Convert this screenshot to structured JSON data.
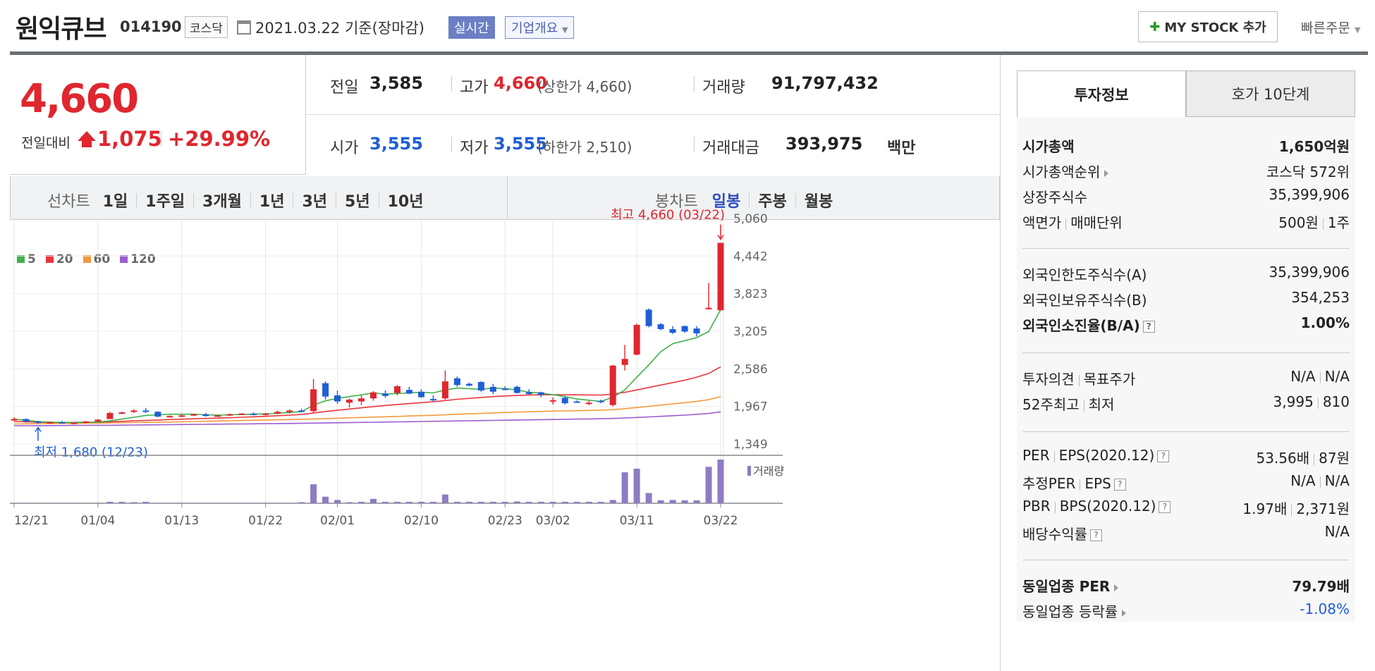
{
  "header": {
    "stock_name": "원익큐브",
    "code": "014190",
    "market": "코스닥",
    "date": "2021.03.22",
    "date_basis": "기준(장마감)",
    "realtime": "실시간",
    "company_info": "기업개요",
    "mystock_label": "MY STOCK 추가",
    "quick_order": "빠른주문"
  },
  "price": {
    "current": "4,660",
    "change_label": "전일대비",
    "change": "1,075",
    "change_pct": "+29.99%"
  },
  "stats": {
    "prev_label": "전일",
    "prev": "3,585",
    "high_label": "고가",
    "high": "4,660",
    "upper_label": "(상한가 4,660)",
    "volume_label": "거래량",
    "volume": "91,797,432",
    "open_label": "시가",
    "open": "3,555",
    "low_label": "저가",
    "low": "3,555",
    "lower_label": "(하한가 2,510)",
    "amount_label": "거래대금",
    "amount": "393,975",
    "amount_unit": "백만"
  },
  "period": {
    "line_label": "선차트",
    "line_items": [
      "1일",
      "1주일",
      "3개월",
      "1년",
      "3년",
      "5년",
      "10년"
    ],
    "candle_label": "봉차트",
    "candle_items": [
      "일봉",
      "주봉",
      "월봉"
    ],
    "candle_selected": 0
  },
  "legend": [
    {
      "label": "5",
      "color": "#3fb24a"
    },
    {
      "label": "20",
      "color": "#e8363c"
    },
    {
      "label": "60",
      "color": "#f19a3e"
    },
    {
      "label": "120",
      "color": "#9b5ed0"
    }
  ],
  "chart_data": {
    "type": "candlestick",
    "y_ticks": [
      5060,
      4442,
      3823,
      3205,
      2586,
      1967,
      1349
    ],
    "y_tick_labels": [
      "5,060",
      "4,442",
      "3,823",
      "3,205",
      "2,586",
      "1,967",
      "1,349"
    ],
    "ylim": [
      1349,
      5060
    ],
    "x_labels": [
      "12/21",
      "01/04",
      "01/13",
      "01/22",
      "02/01",
      "02/10",
      "02/23",
      "03/02",
      "03/11",
      "03/22"
    ],
    "x_label_index": [
      0,
      7,
      14,
      21,
      27,
      34,
      41,
      45,
      52,
      59
    ],
    "high_annotation": "최고 4,660 (03/22)",
    "low_annotation": "최저 1,680 (12/23)",
    "volume_label": "거래량",
    "candles": [
      [
        1750,
        1790,
        1730,
        1760
      ],
      [
        1760,
        1770,
        1700,
        1720
      ],
      [
        1720,
        1730,
        1680,
        1700
      ],
      [
        1700,
        1720,
        1690,
        1710
      ],
      [
        1710,
        1730,
        1700,
        1690
      ],
      [
        1690,
        1710,
        1680,
        1700
      ],
      [
        1700,
        1730,
        1690,
        1720
      ],
      [
        1720,
        1760,
        1710,
        1750
      ],
      [
        1760,
        1880,
        1760,
        1860
      ],
      [
        1860,
        1880,
        1840,
        1870
      ],
      [
        1880,
        1920,
        1860,
        1900
      ],
      [
        1900,
        1940,
        1860,
        1880
      ],
      [
        1880,
        1890,
        1790,
        1800
      ],
      [
        1800,
        1820,
        1790,
        1810
      ],
      [
        1810,
        1840,
        1790,
        1820
      ],
      [
        1820,
        1850,
        1810,
        1840
      ],
      [
        1840,
        1860,
        1800,
        1810
      ],
      [
        1810,
        1830,
        1800,
        1820
      ],
      [
        1820,
        1850,
        1810,
        1840
      ],
      [
        1840,
        1860,
        1830,
        1850
      ],
      [
        1850,
        1870,
        1820,
        1830
      ],
      [
        1830,
        1860,
        1820,
        1850
      ],
      [
        1850,
        1900,
        1840,
        1880
      ],
      [
        1880,
        1920,
        1850,
        1900
      ],
      [
        1900,
        1930,
        1880,
        1890
      ],
      [
        1890,
        2420,
        1870,
        2250
      ],
      [
        2350,
        2380,
        2080,
        2130
      ],
      [
        2150,
        2230,
        2010,
        2050
      ],
      [
        2030,
        2100,
        1950,
        2080
      ],
      [
        2050,
        2150,
        1990,
        2100
      ],
      [
        2100,
        2220,
        2060,
        2200
      ],
      [
        2180,
        2230,
        2110,
        2140
      ],
      [
        2190,
        2320,
        2150,
        2300
      ],
      [
        2240,
        2290,
        2170,
        2180
      ],
      [
        2210,
        2250,
        2110,
        2120
      ],
      [
        2090,
        2150,
        2050,
        2080
      ],
      [
        2100,
        2560,
        2080,
        2380
      ],
      [
        2430,
        2460,
        2290,
        2320
      ],
      [
        2340,
        2360,
        2300,
        2310
      ],
      [
        2370,
        2380,
        2210,
        2230
      ],
      [
        2290,
        2340,
        2170,
        2210
      ],
      [
        2260,
        2300,
        2240,
        2250
      ],
      [
        2290,
        2310,
        2180,
        2190
      ],
      [
        2200,
        2250,
        2160,
        2170
      ],
      [
        2200,
        2210,
        2120,
        2160
      ],
      [
        2060,
        2120,
        2000,
        2070
      ],
      [
        2110,
        2140,
        2000,
        2020
      ],
      [
        2050,
        2070,
        2030,
        2040
      ],
      [
        2010,
        2060,
        1990,
        2030
      ],
      [
        2060,
        2080,
        2020,
        2050
      ],
      [
        1990,
        2650,
        1970,
        2640
      ],
      [
        2650,
        2980,
        2560,
        2750
      ],
      [
        2820,
        3330,
        2810,
        3310
      ],
      [
        3560,
        3580,
        3270,
        3290
      ],
      [
        3320,
        3340,
        3220,
        3240
      ],
      [
        3240,
        3290,
        3160,
        3180
      ],
      [
        3290,
        3300,
        3180,
        3200
      ],
      [
        3250,
        3290,
        3120,
        3170
      ],
      [
        3590,
        4000,
        3560,
        3590
      ],
      [
        3550,
        4660,
        3550,
        4660
      ]
    ],
    "ma5": [
      1760,
      1740,
      1720,
      1710,
      1705,
      1700,
      1705,
      1710,
      1730,
      1760,
      1790,
      1820,
      1830,
      1840,
      1840,
      1840,
      1830,
      1825,
      1830,
      1835,
      1840,
      1845,
      1855,
      1870,
      1880,
      1990,
      2060,
      2100,
      2130,
      2160,
      2190,
      2170,
      2180,
      2190,
      2200,
      2190,
      2240,
      2270,
      2260,
      2250,
      2270,
      2260,
      2240,
      2200,
      2190,
      2160,
      2130,
      2090,
      2070,
      2050,
      2120,
      2240,
      2450,
      2650,
      2870,
      3000,
      3050,
      3100,
      3200,
      3560
    ],
    "ma20": [
      1720,
      1715,
      1710,
      1705,
      1705,
      1705,
      1707,
      1710,
      1715,
      1722,
      1730,
      1738,
      1745,
      1752,
      1758,
      1764,
      1770,
      1776,
      1782,
      1790,
      1798,
      1805,
      1815,
      1825,
      1835,
      1860,
      1885,
      1905,
      1925,
      1945,
      1965,
      1985,
      2000,
      2015,
      2030,
      2045,
      2065,
      2085,
      2100,
      2115,
      2130,
      2140,
      2148,
      2155,
      2160,
      2160,
      2160,
      2158,
      2156,
      2155,
      2170,
      2200,
      2240,
      2280,
      2320,
      2360,
      2400,
      2450,
      2510,
      2620
    ],
    "ma60": [
      1680,
      1682,
      1684,
      1686,
      1688,
      1690,
      1692,
      1694,
      1697,
      1700,
      1703,
      1706,
      1709,
      1712,
      1716,
      1720,
      1724,
      1728,
      1732,
      1736,
      1740,
      1744,
      1748,
      1752,
      1756,
      1762,
      1768,
      1774,
      1780,
      1786,
      1792,
      1798,
      1804,
      1810,
      1816,
      1822,
      1830,
      1838,
      1846,
      1854,
      1862,
      1868,
      1874,
      1880,
      1886,
      1890,
      1894,
      1898,
      1902,
      1906,
      1915,
      1930,
      1950,
      1970,
      1990,
      2010,
      2030,
      2050,
      2080,
      2130
    ],
    "ma120": [
      1650,
      1651,
      1652,
      1653,
      1654,
      1655,
      1656,
      1657,
      1658,
      1660,
      1662,
      1664,
      1666,
      1668,
      1670,
      1672,
      1674,
      1676,
      1678,
      1680,
      1682,
      1684,
      1686,
      1688,
      1690,
      1693,
      1696,
      1699,
      1702,
      1705,
      1708,
      1711,
      1714,
      1717,
      1720,
      1723,
      1726,
      1729,
      1732,
      1735,
      1738,
      1741,
      1744,
      1747,
      1750,
      1753,
      1756,
      1759,
      1762,
      1765,
      1770,
      1778,
      1786,
      1795,
      1805,
      1815,
      1825,
      1838,
      1852,
      1880
    ],
    "volume": [
      1,
      1,
      1,
      1,
      1,
      1,
      1,
      1,
      4,
      4,
      3,
      4,
      1,
      1,
      1,
      1,
      1,
      1,
      1,
      1,
      1,
      1,
      1,
      1,
      3,
      52,
      18,
      9,
      3,
      4,
      12,
      4,
      4,
      4,
      4,
      4,
      24,
      4,
      4,
      4,
      4,
      4,
      5,
      4,
      4,
      4,
      4,
      4,
      4,
      4,
      9,
      85,
      95,
      28,
      8,
      9,
      8,
      8,
      100,
      120
    ],
    "volume_max": 120
  },
  "invest": {
    "tab_info": "투자정보",
    "tab_hoga": "호가 10단계",
    "rows": [
      {
        "k": "시가총액",
        "v_num": "1,650",
        "v_unit": "억원"
      },
      {
        "k": "시가총액순위",
        "v": "코스닥 572위"
      },
      {
        "k": "상장주식수",
        "v": "35,399,906"
      },
      {
        "k": "액면가",
        "k2": "매매단위",
        "v": "500원",
        "v2": "1주"
      },
      {
        "k": "외국인한도주식수(A)",
        "v": "35,399,906"
      },
      {
        "k": "외국인보유주식수(B)",
        "v": "354,253"
      },
      {
        "k": "외국인소진율(B/A)",
        "v": "1.00%"
      },
      {
        "k": "투자의견",
        "k2": "목표주가",
        "v": "N/A",
        "v2": "N/A"
      },
      {
        "k": "52주최고",
        "k2": "최저",
        "v": "3,995",
        "v2": "810"
      },
      {
        "k": "PER",
        "k2": "EPS(2020.12)",
        "v": "53.56배",
        "v2": "87원"
      },
      {
        "k": "추정PER",
        "k2": "EPS",
        "v": "N/A",
        "v2": "N/A"
      },
      {
        "k": "PBR",
        "k2": "BPS(2020.12)",
        "v": "1.97배",
        "v2": "2,371원"
      },
      {
        "k": "배당수익률",
        "v": "N/A"
      },
      {
        "k": "동일업종 PER",
        "v": "79.79배"
      },
      {
        "k": "동일업종 등락률",
        "v": "-1.08%"
      }
    ],
    "help_glyph": "?"
  },
  "colors": {
    "up": "#e0262e",
    "down": "#1f5ed6",
    "accent": "#6b6f75"
  }
}
